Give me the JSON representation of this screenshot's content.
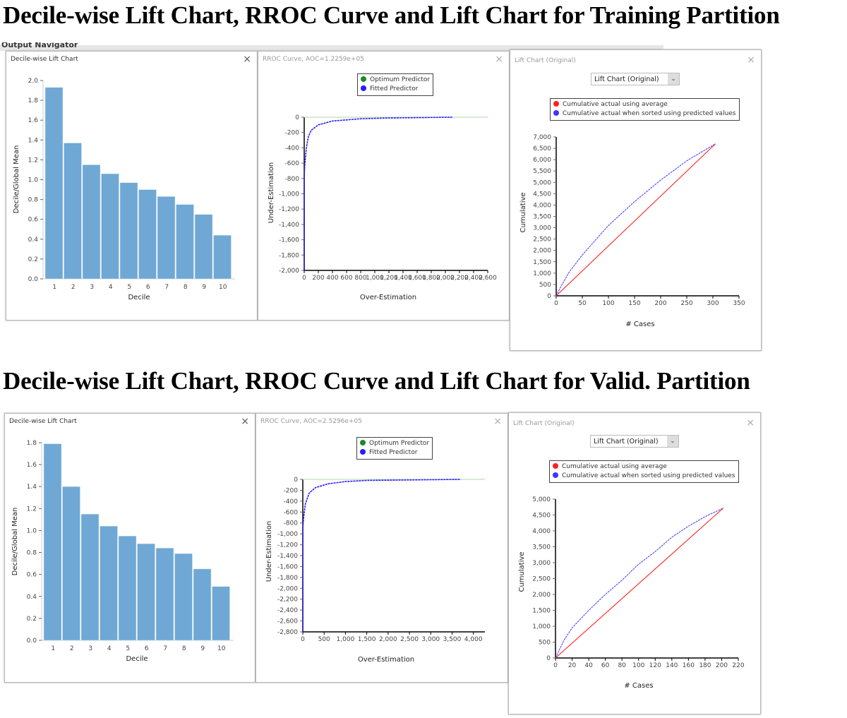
{
  "headings": {
    "training": "Decile-wise Lift Chart, RROC Curve and Lift Chart for Training Partition",
    "valid": "Decile-wise Lift Chart, RROC Curve and Lift Chart for Valid. Partition"
  },
  "background": {
    "navigator": "Output Navigator"
  },
  "close_icon": "×",
  "dropdown_arrow": "⌄",
  "colors": {
    "bar": "#6fa8d4",
    "optimum": "#1a8a2a",
    "fitted": "#2a1aff",
    "average": "#ff2020",
    "sorted": "#5544ff"
  },
  "chart_data": [
    {
      "id": "c1",
      "type": "bar",
      "partition": "Training",
      "title": "Decile-wise Lift Chart",
      "xlabel": "Decile",
      "ylabel": "Decile/Global Mean",
      "categories": [
        "1",
        "2",
        "3",
        "4",
        "5",
        "6",
        "7",
        "8",
        "9",
        "10"
      ],
      "values": [
        1.93,
        1.37,
        1.15,
        1.06,
        0.97,
        0.9,
        0.83,
        0.75,
        0.65,
        0.44
      ],
      "ylim": [
        0,
        2.0
      ],
      "yticks": [
        0,
        0.2,
        0.4,
        0.6,
        0.8,
        1.0,
        1.2,
        1.4,
        1.6,
        1.8,
        2.0
      ],
      "ytick_labels": [
        "0.0",
        "0.2",
        "0.4",
        "0.6",
        "0.8",
        "1.0",
        "1.2",
        "1.4",
        "1.6",
        "1.8",
        "2.0"
      ]
    },
    {
      "id": "c2",
      "type": "line",
      "partition": "Training",
      "title": "RROC Curve, AOC=1.2259e+05",
      "xlabel": "Over-Estimation",
      "ylabel": "Under-Estimation",
      "legend": [
        "Optimum Predictor",
        "Fitted Predictor"
      ],
      "xlim": [
        0,
        2600
      ],
      "ylim": [
        -2000,
        0
      ],
      "xticks": [
        0,
        200,
        400,
        600,
        800,
        1000,
        1200,
        1400,
        1600,
        1800,
        2000,
        2200,
        2400,
        2600
      ],
      "xtick_labels": [
        "0",
        "200",
        "400",
        "600",
        "800",
        "1,000",
        "1,200",
        "1,400",
        "1,600",
        "1,800",
        "2,000",
        "2,200",
        "2,400",
        "2,600"
      ],
      "yticks": [
        0,
        -200,
        -400,
        -600,
        -800,
        -1000,
        -1200,
        -1400,
        -1600,
        -1800,
        -2000
      ],
      "ytick_labels": [
        "0",
        "-200",
        "-400",
        "-600",
        "-800",
        "-1,000",
        "-1,200",
        "-1,400",
        "-1,600",
        "-1,800",
        "-2,000"
      ],
      "series": [
        {
          "name": "Optimum Predictor",
          "x": [
            0,
            2600
          ],
          "y": [
            0,
            0
          ]
        },
        {
          "name": "Fitted Predictor",
          "x": [
            0,
            0,
            10,
            30,
            60,
            100,
            200,
            400,
            800,
            1200,
            2100
          ],
          "y": [
            -2000,
            -750,
            -600,
            -400,
            -250,
            -170,
            -100,
            -50,
            -20,
            -10,
            0
          ]
        }
      ]
    },
    {
      "id": "c3",
      "type": "line",
      "partition": "Training",
      "title": "Lift Chart (Original)",
      "dropdown": "Lift Chart (Original)",
      "xlabel": "# Cases",
      "ylabel": "Cumulative",
      "legend": [
        "Cumulative actual using average",
        "Cumulative actual when sorted using predicted values"
      ],
      "xlim": [
        0,
        350
      ],
      "ylim": [
        0,
        7000
      ],
      "xticks": [
        0,
        50,
        100,
        150,
        200,
        250,
        300,
        350
      ],
      "xtick_labels": [
        "0",
        "50",
        "100",
        "150",
        "200",
        "250",
        "300",
        "350"
      ],
      "yticks": [
        0,
        500,
        1000,
        1500,
        2000,
        2500,
        3000,
        3500,
        4000,
        4500,
        5000,
        5500,
        6000,
        6500,
        7000
      ],
      "ytick_labels": [
        "0",
        "500",
        "1,000",
        "1,500",
        "2,000",
        "2,500",
        "3,000",
        "3,500",
        "4,000",
        "4,500",
        "5,000",
        "5,500",
        "6,000",
        "6,500",
        "7,000"
      ],
      "series": [
        {
          "name": "Cumulative actual using average",
          "x": [
            0,
            305
          ],
          "y": [
            0,
            6700
          ]
        },
        {
          "name": "Cumulative actual when sorted using predicted values",
          "x": [
            0,
            10,
            25,
            50,
            100,
            150,
            200,
            250,
            305
          ],
          "y": [
            0,
            450,
            1050,
            1800,
            3100,
            4150,
            5100,
            5950,
            6700
          ]
        }
      ]
    },
    {
      "id": "c4",
      "type": "bar",
      "partition": "Valid.",
      "title": "Decile-wise Lift Chart",
      "xlabel": "Decile",
      "ylabel": "Decile/Global Mean",
      "categories": [
        "1",
        "2",
        "3",
        "4",
        "5",
        "6",
        "7",
        "8",
        "9",
        "10"
      ],
      "values": [
        1.79,
        1.4,
        1.15,
        1.04,
        0.95,
        0.88,
        0.84,
        0.79,
        0.65,
        0.49
      ],
      "ylim": [
        0,
        1.8
      ],
      "yticks": [
        0,
        0.2,
        0.4,
        0.6,
        0.8,
        1.0,
        1.2,
        1.4,
        1.6,
        1.8
      ],
      "ytick_labels": [
        "0.0",
        "0.2",
        "0.4",
        "0.6",
        "0.8",
        "1.0",
        "1.2",
        "1.4",
        "1.6",
        "1.8"
      ]
    },
    {
      "id": "c5",
      "type": "line",
      "partition": "Valid.",
      "title": "RROC Curve, AOC=2.5296e+05",
      "xlabel": "Over-Estimation",
      "ylabel": "Under-Estimation",
      "legend": [
        "Optimum Predictor",
        "Fitted Predictor"
      ],
      "xlim": [
        0,
        4270
      ],
      "ylim": [
        -2800,
        0
      ],
      "xticks": [
        0,
        500,
        1000,
        1500,
        2000,
        2500,
        3000,
        3500,
        4000
      ],
      "xtick_labels": [
        "0",
        "500",
        "1,000",
        "1,500",
        "2,000",
        "2,500",
        "3,000",
        "3,500",
        "4,000"
      ],
      "yticks": [
        0,
        -200,
        -400,
        -600,
        -800,
        -1000,
        -1200,
        -1400,
        -1600,
        -1800,
        -2000,
        -2200,
        -2400,
        -2600,
        -2800
      ],
      "ytick_labels": [
        "0",
        "-200",
        "-400",
        "-600",
        "-800",
        "-1,000",
        "-1,200",
        "-1,400",
        "-1,600",
        "-1,800",
        "-2,000",
        "-2,200",
        "-2,400",
        "-2,600",
        "-2,800"
      ],
      "series": [
        {
          "name": "Optimum Predictor",
          "x": [
            0,
            4270
          ],
          "y": [
            0,
            0
          ]
        },
        {
          "name": "Fitted Predictor",
          "x": [
            0,
            0,
            20,
            60,
            150,
            300,
            600,
            1000,
            1500,
            3700
          ],
          "y": [
            -2800,
            -900,
            -700,
            -450,
            -250,
            -150,
            -80,
            -40,
            -20,
            0
          ]
        }
      ]
    },
    {
      "id": "c6",
      "type": "line",
      "partition": "Valid.",
      "title": "Lift Chart (Original)",
      "dropdown": "Lift Chart (Original)",
      "xlabel": "# Cases",
      "ylabel": "Cumulative",
      "legend": [
        "Cumulative actual using average",
        "Cumulative actual when sorted using predicted values"
      ],
      "xlim": [
        0,
        220
      ],
      "ylim": [
        0,
        5000
      ],
      "xticks": [
        0,
        20,
        40,
        60,
        80,
        100,
        120,
        140,
        160,
        180,
        200,
        220
      ],
      "xtick_labels": [
        "0",
        "20",
        "40",
        "60",
        "80",
        "100",
        "120",
        "140",
        "160",
        "180",
        "200",
        "220"
      ],
      "yticks": [
        0,
        500,
        1000,
        1500,
        2000,
        2500,
        3000,
        3500,
        4000,
        4500,
        5000
      ],
      "ytick_labels": [
        "0",
        "500",
        "1,000",
        "1,500",
        "2,000",
        "2,500",
        "3,000",
        "3,500",
        "4,000",
        "4,500",
        "5,000"
      ],
      "series": [
        {
          "name": "Cumulative actual using average",
          "x": [
            0,
            202
          ],
          "y": [
            0,
            4720
          ]
        },
        {
          "name": "Cumulative actual when sorted using predicted values",
          "x": [
            0,
            10,
            20,
            40,
            60,
            80,
            100,
            120,
            140,
            160,
            180,
            202
          ],
          "y": [
            0,
            550,
            950,
            1500,
            2000,
            2450,
            2950,
            3350,
            3800,
            4150,
            4450,
            4720
          ]
        }
      ]
    }
  ]
}
